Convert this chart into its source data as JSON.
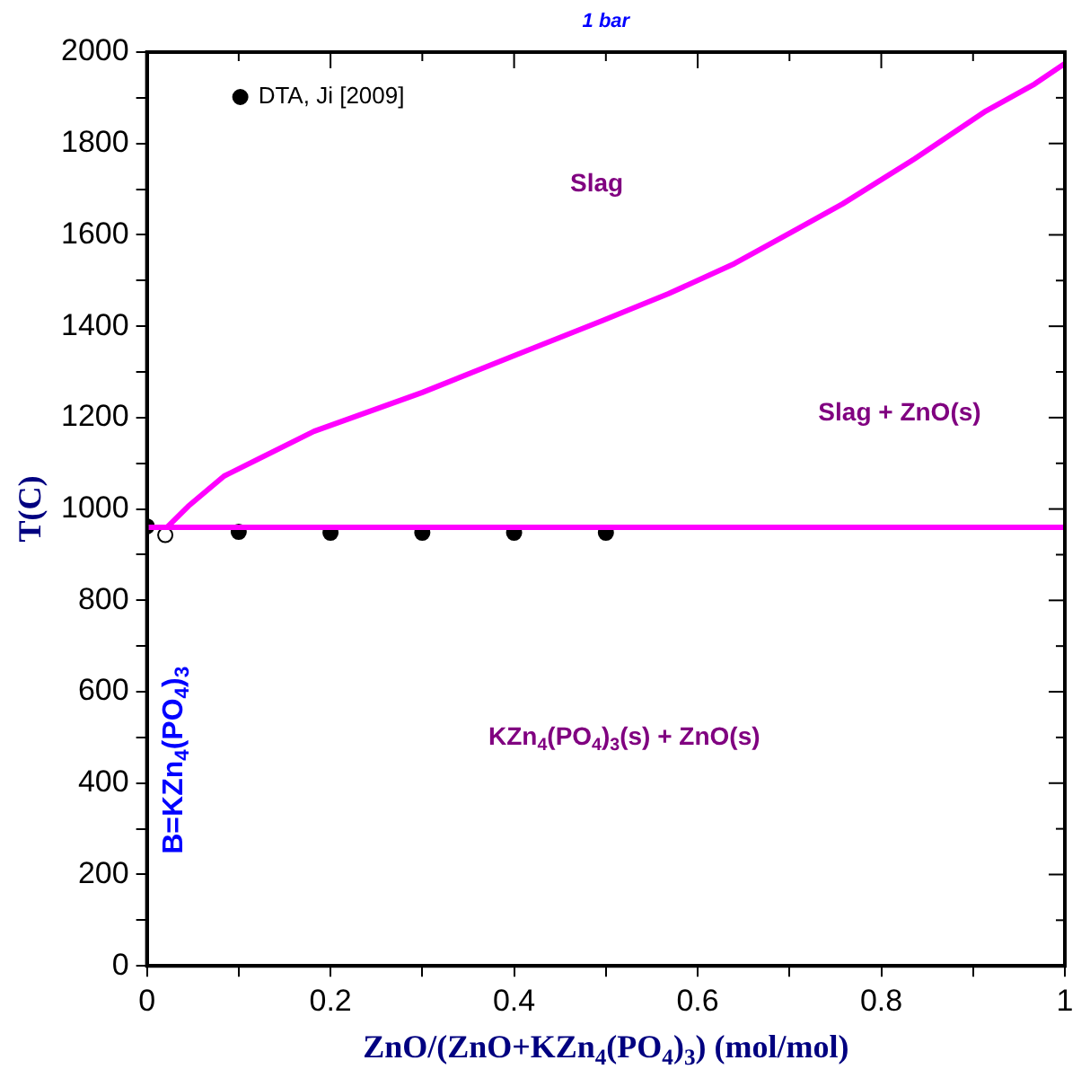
{
  "chart_data": {
    "type": "line",
    "title": "1 bar",
    "xlabel": "ZnO/(ZnO+KZn$_{4}$(PO$_{4}$)$_{3}$) (mol/mol)",
    "ylabel": "T(C)",
    "xlim": [
      0,
      1
    ],
    "ylim": [
      0,
      2000
    ],
    "xticks": [
      0,
      {
        "value": 0.1,
        "label": null
      },
      0.2,
      {
        "value": 0.3,
        "label": null
      },
      0.4,
      {
        "value": 0.5,
        "label": null
      },
      0.6,
      {
        "value": 0.7,
        "label": null
      },
      0.8,
      {
        "value": 0.9,
        "label": null
      },
      1
    ],
    "yticks": [
      0,
      {
        "value": 100,
        "label": null
      },
      200,
      {
        "value": 300,
        "label": null
      },
      400,
      {
        "value": 500,
        "label": null
      },
      600,
      {
        "value": 700,
        "label": null
      },
      800,
      {
        "value": 900,
        "label": null
      },
      1000,
      {
        "value": 1100,
        "label": null
      },
      1200,
      {
        "value": 1300,
        "label": null
      },
      1400,
      {
        "value": 1500,
        "label": null
      },
      1600,
      {
        "value": 1700,
        "label": null
      },
      1800,
      {
        "value": 1900,
        "label": null
      },
      2000
    ],
    "grid": false,
    "legend": "top left",
    "series": [
      {
        "type": "line",
        "color": "#ff00ff",
        "marker": "none",
        "line_style": "solid",
        "x": [
          0.022,
          0.045,
          0.084,
          0.182,
          0.3,
          0.398,
          0.496,
          0.568,
          0.64,
          0.705,
          0.758,
          0.836,
          0.914,
          0.967,
          1.0
        ],
        "values": [
          960,
          1006,
          1072,
          1170,
          1255,
          1334,
          1412,
          1471,
          1537,
          1609,
          1668,
          1766,
          1871,
          1930,
          1975
        ]
      },
      {
        "type": "line",
        "color": "#ff00ff",
        "marker": "none",
        "line_style": "solid",
        "x": [
          0,
          1
        ],
        "values": [
          960,
          960
        ]
      },
      {
        "type": "scatter",
        "name": "DTA, Ji [2009]",
        "color": "#000000",
        "marker": "circle",
        "x": [
          0,
          0.1,
          0.2,
          0.3,
          0.4,
          0.5
        ],
        "values": [
          962,
          950,
          948,
          948,
          948,
          948
        ]
      },
      {
        "type": "scatter",
        "color": "#ffffff",
        "marker": "circle",
        "x": [
          0.02
        ],
        "values": [
          943
        ]
      }
    ],
    "annotations": [
      "Slag",
      "Slag + ZnO(s)",
      "KZn$_{4}$(PO$_{4}$)$_{3}$(s) + ZnO(s)",
      "B=KZn$_{4}$(PO$_{4}$)$_{3}$"
    ]
  }
}
